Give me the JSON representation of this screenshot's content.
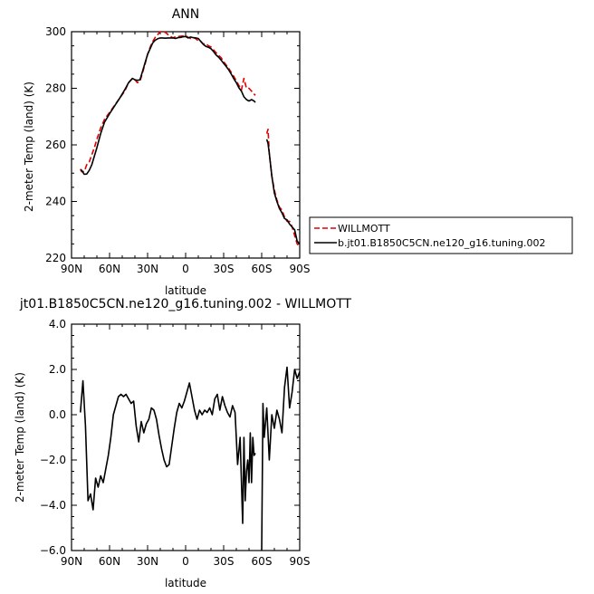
{
  "chart_data": [
    {
      "type": "line",
      "title": "ANN",
      "xlabel": "latitude",
      "ylabel": "2-meter Temp (land) (K)",
      "xlim": [
        90,
        -90
      ],
      "ylim": [
        220,
        300
      ],
      "xticks": [
        90,
        60,
        30,
        0,
        -30,
        -60,
        -90
      ],
      "xtick_labels": [
        "90N",
        "60N",
        "30N",
        "0",
        "30S",
        "60S",
        "90S"
      ],
      "yticks": [
        220,
        240,
        260,
        280,
        300
      ],
      "ytick_labels": [
        "220",
        "240",
        "260",
        "280",
        "300"
      ],
      "legend": {
        "placement": "right-outside",
        "entries": [
          "WILLMOTT",
          "b.jt01.B1850C5CN.ne120_g16.tuning.002"
        ]
      },
      "series": [
        {
          "name": "WILLMOTT",
          "color": "#e00000",
          "style": "dashed",
          "segments": [
            {
              "x": [
                83,
                82,
                80,
                78,
                76,
                74,
                72,
                70,
                67,
                64,
                60,
                56,
                52,
                48,
                45,
                42,
                40,
                38,
                36,
                34,
                32,
                30,
                28,
                26,
                24,
                22,
                20,
                18,
                16,
                14,
                12,
                10,
                8,
                6,
                4,
                2,
                0,
                -2,
                -4,
                -6,
                -8,
                -10,
                -12,
                -14,
                -16,
                -18,
                -20,
                -22,
                -24,
                -26,
                -28,
                -30,
                -32,
                -34,
                -36,
                -38,
                -40,
                -42,
                -44,
                -46,
                -48,
                -50,
                -52,
                -54,
                -55
              ],
              "y": [
                251.5,
                250.5,
                250.6,
                253.0,
                254.0,
                256.5,
                259.0,
                262.0,
                266.0,
                269.0,
                271.5,
                274.0,
                276.5,
                279.0,
                282.0,
                283.5,
                283.0,
                282.0,
                282.5,
                285.5,
                288.5,
                292.0,
                294.5,
                296.5,
                298.0,
                299.0,
                300.0,
                299.9,
                299.8,
                299.0,
                298.4,
                297.8,
                298.2,
                298.3,
                298.4,
                298.5,
                298.6,
                298.0,
                297.6,
                298.0,
                297.5,
                296.8,
                296.6,
                295.6,
                295.8,
                295.0,
                294.6,
                293.6,
                292.6,
                291.6,
                290.8,
                289.4,
                288.2,
                287.0,
                285.6,
                284.2,
                282.6,
                281.0,
                279.4,
                283.5,
                280.0,
                280.0,
                279.0,
                278.0,
                277.5
              ]
            },
            {
              "x": [
                -64,
                -65,
                -66,
                -68,
                -70,
                -72,
                -74,
                -76,
                -78,
                -80,
                -82,
                -84,
                -86,
                -88,
                -90
              ],
              "y": [
                264.0,
                265.5,
                257.0,
                249.0,
                244.0,
                240.5,
                238.0,
                237.0,
                234.5,
                233.0,
                233.0,
                231.0,
                228.0,
                225.0,
                224.0
              ]
            }
          ]
        },
        {
          "name": "b.jt01.B1850C5CN.ne120_g16.tuning.002",
          "color": "#000000",
          "style": "solid",
          "segments": [
            {
              "x": [
                83,
                82,
                80,
                78,
                76,
                74,
                72,
                70,
                67,
                64,
                60,
                56,
                52,
                48,
                45,
                42,
                40,
                38,
                36,
                34,
                32,
                30,
                28,
                26,
                24,
                22,
                20,
                18,
                16,
                14,
                12,
                10,
                8,
                6,
                4,
                2,
                0,
                -2,
                -4,
                -6,
                -8,
                -10,
                -12,
                -14,
                -16,
                -18,
                -20,
                -22,
                -24,
                -26,
                -28,
                -30,
                -32,
                -34,
                -36,
                -38,
                -40,
                -42,
                -44,
                -46,
                -48,
                -50,
                -52,
                -54,
                -55
              ],
              "y": [
                251.0,
                251.0,
                249.6,
                249.7,
                251.0,
                253.0,
                256.0,
                259.0,
                264.0,
                268.0,
                271.0,
                273.8,
                276.5,
                279.5,
                282.0,
                283.5,
                283.0,
                282.8,
                283.0,
                286.0,
                289.0,
                292.0,
                294.0,
                296.0,
                297.0,
                297.5,
                297.8,
                297.8,
                297.7,
                297.8,
                297.8,
                297.8,
                297.6,
                297.9,
                298.0,
                298.2,
                298.3,
                297.8,
                298.1,
                297.9,
                297.8,
                297.6,
                296.5,
                295.5,
                294.8,
                294.5,
                294.0,
                293.0,
                291.8,
                291.0,
                290.0,
                288.8,
                287.7,
                286.5,
                285.0,
                283.4,
                282.0,
                280.2,
                279.0,
                277.0,
                276.0,
                275.5,
                276.0,
                275.5,
                275.0
              ]
            },
            {
              "x": [
                -64,
                -65,
                -66,
                -68,
                -70,
                -72,
                -74,
                -76,
                -78,
                -80,
                -82,
                -84,
                -86,
                -88,
                -90
              ],
              "y": [
                262.0,
                260.5,
                257.0,
                249.0,
                243.0,
                240.0,
                237.5,
                236.0,
                234.0,
                233.5,
                232.0,
                231.0,
                230.0,
                226.0,
                225.0
              ]
            }
          ]
        }
      ]
    },
    {
      "type": "line",
      "title": "jt01.B1850C5CN.ne120_g16.tuning.002 - WILLMOTT",
      "xlabel": "latitude",
      "ylabel": "2-meter Temp (land) (K)",
      "xlim": [
        90,
        -90
      ],
      "ylim": [
        -6.0,
        4.0
      ],
      "xticks": [
        90,
        60,
        30,
        0,
        -30,
        -60,
        -90
      ],
      "xtick_labels": [
        "90N",
        "60N",
        "30N",
        "0",
        "30S",
        "60S",
        "90S"
      ],
      "yticks": [
        -6.0,
        -4.0,
        -2.0,
        0.0,
        2.0,
        4.0
      ],
      "ytick_labels": [
        "−6.0",
        "−4.0",
        "−2.0",
        "0.0",
        "2.0",
        "4.0"
      ],
      "series": [
        {
          "color": "#000000",
          "style": "solid",
          "segments": [
            {
              "x": [
                83,
                81,
                79,
                77,
                75,
                73,
                71,
                69,
                67,
                65,
                63,
                61,
                59,
                57,
                55,
                53,
                51,
                49,
                47,
                45,
                43,
                41,
                39,
                37,
                35,
                33,
                31,
                29,
                27,
                25,
                23,
                21,
                19,
                17,
                15,
                13,
                11,
                9,
                7,
                5,
                3,
                1,
                -1,
                -3,
                -5,
                -7,
                -9,
                -11,
                -13,
                -15,
                -17,
                -19,
                -21,
                -23,
                -25,
                -27,
                -29,
                -31,
                -33,
                -35,
                -37,
                -39,
                -41,
                -43,
                -45,
                -46,
                -47,
                -48,
                -49,
                -50,
                -51,
                -52,
                -53,
                -54,
                -55
              ],
              "y": [
                0.1,
                1.5,
                -0.5,
                -3.8,
                -3.5,
                -4.2,
                -2.8,
                -3.2,
                -2.7,
                -3.0,
                -2.4,
                -1.8,
                -1.0,
                0.0,
                0.4,
                0.8,
                0.9,
                0.8,
                0.9,
                0.7,
                0.5,
                0.6,
                -0.5,
                -1.2,
                -0.3,
                -0.8,
                -0.4,
                -0.2,
                0.3,
                0.2,
                -0.2,
                -0.9,
                -1.5,
                -2.0,
                -2.3,
                -2.2,
                -1.4,
                -0.6,
                0.1,
                0.5,
                0.3,
                0.6,
                1.0,
                1.4,
                0.8,
                0.2,
                -0.2,
                0.2,
                0.0,
                0.2,
                0.1,
                0.3,
                0.0,
                0.7,
                0.9,
                0.2,
                0.8,
                0.4,
                0.1,
                -0.1,
                0.4,
                0.1,
                -2.2,
                -1.0,
                -4.8,
                -1.0,
                -3.8,
                -2.5,
                -2.0,
                -3.0,
                -0.8,
                -3.0,
                -1.0,
                -1.8,
                -1.7
              ]
            },
            {
              "x": [
                -60,
                -61,
                -62,
                -64,
                -66,
                -68,
                -70,
                -72,
                -74,
                -76,
                -78,
                -80,
                -82,
                -84,
                -86,
                -88,
                -90
              ],
              "y": [
                -6.0,
                0.5,
                -1.0,
                0.3,
                -2.0,
                0.0,
                -0.6,
                0.2,
                -0.2,
                -0.8,
                1.2,
                2.1,
                0.3,
                1.0,
                2.0,
                1.6,
                1.9
              ]
            }
          ]
        }
      ]
    }
  ]
}
